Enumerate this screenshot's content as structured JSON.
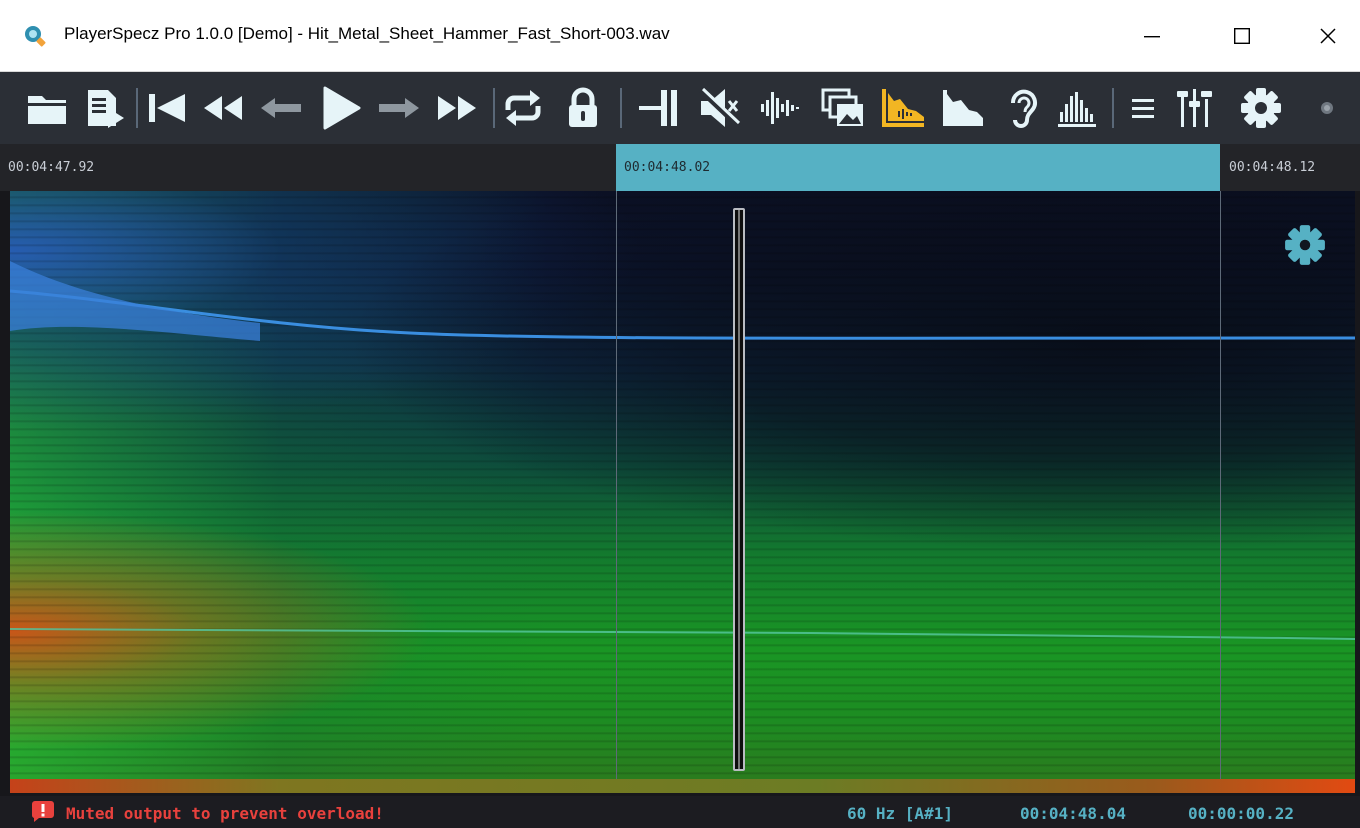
{
  "window": {
    "title": "PlayerSpecz Pro 1.0.0 [Demo] - Hit_Metal_Sheet_Hammer_Fast_Short-003.wav"
  },
  "toolbar": {
    "buttons": [
      "open-folder",
      "open-file",
      "go-to-start",
      "rewind",
      "step-back",
      "play",
      "step-forward",
      "fast-forward",
      "loop",
      "lock",
      "trim",
      "mute",
      "waveform-view",
      "layers-view",
      "spectrogram-view",
      "spectrum-view",
      "ear-monitor",
      "histogram-view",
      "menu",
      "mixer",
      "settings",
      "record-indicator"
    ],
    "active_button": "spectrogram-view",
    "accent_color": "#f2b623",
    "icon_color": "#e6f4f8"
  },
  "timeline": {
    "left_time": "00:04:47.92",
    "selection_time": "00:04:48.02",
    "right_time": "00:04:48.12",
    "selection_color": "#56b1c4"
  },
  "status": {
    "message": "Muted output to prevent overload!",
    "frequency": "60 Hz [A#1]",
    "position": "00:04:48.04",
    "duration": "00:00:00.22",
    "message_color": "#e8413d",
    "value_color": "#56b1c4"
  }
}
